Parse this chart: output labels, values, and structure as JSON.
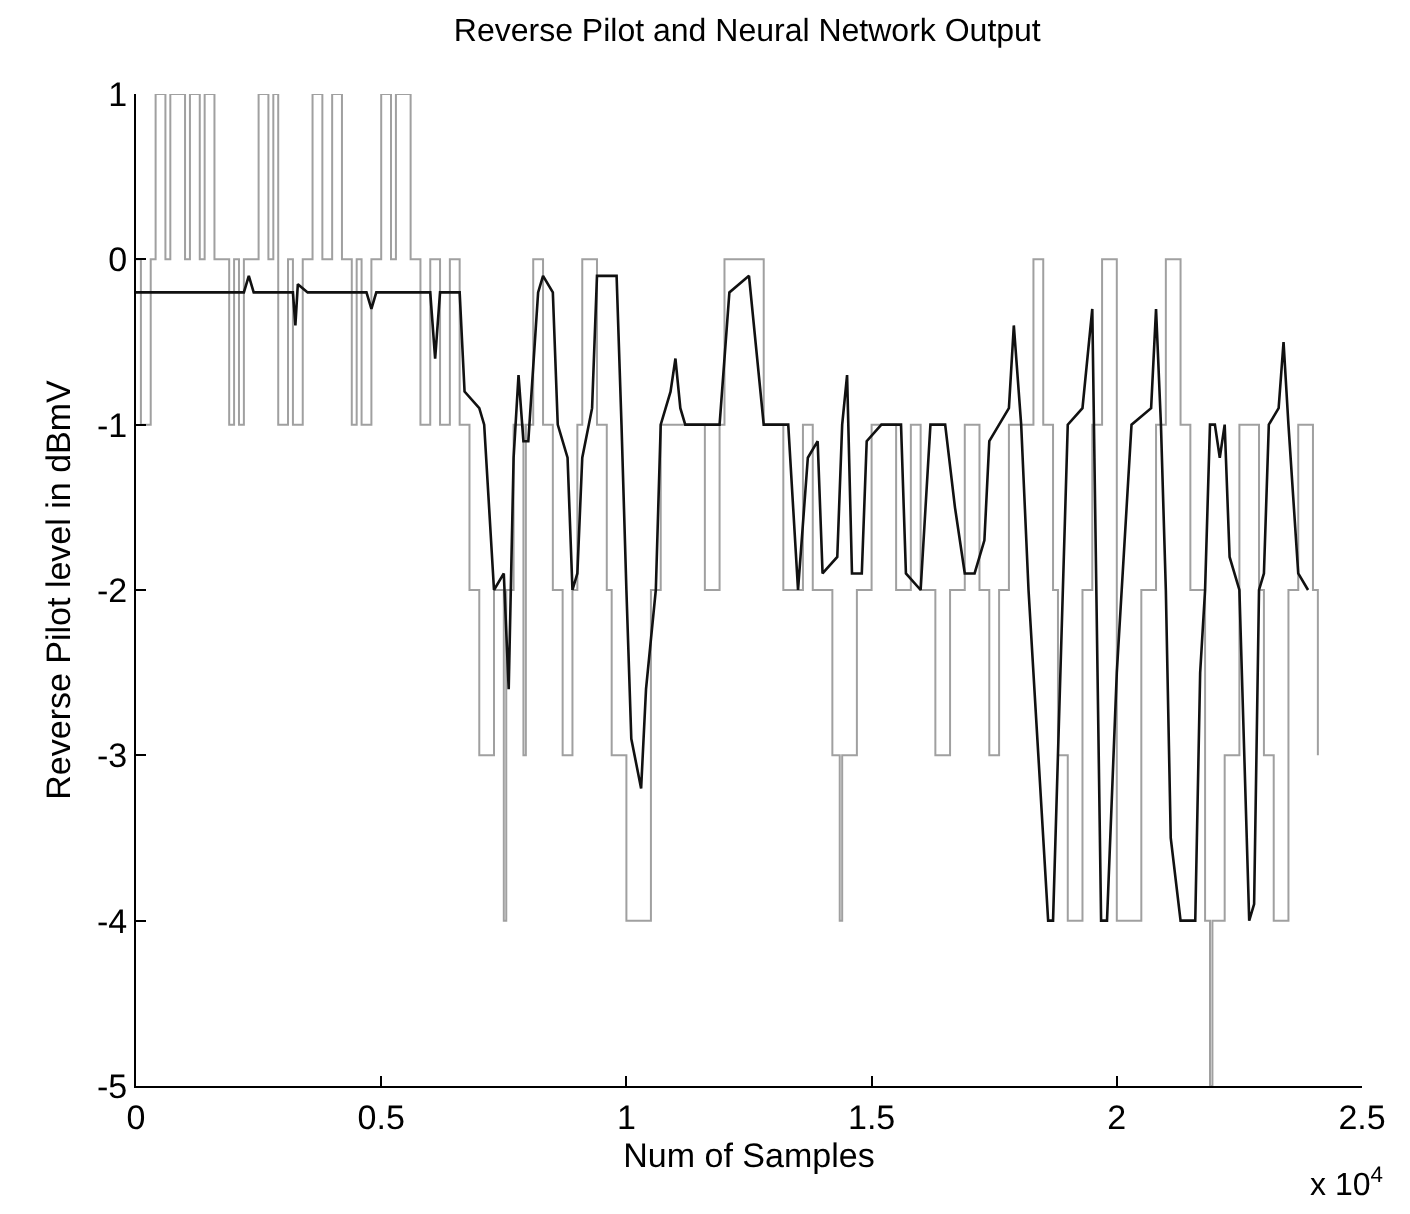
{
  "chart_data": {
    "type": "line",
    "title": "Reverse Pilot and Neural Network Output",
    "xlabel": "Num of Samples",
    "ylabel": "Reverse Pilot level in dBmV",
    "annotations": [
      "x 10$^{4}$"
    ],
    "xlim": [
      0,
      2.5
    ],
    "xticks": [
      0,
      0.5,
      1,
      1.5,
      2,
      2.5
    ],
    "ylim": [
      -5,
      1
    ],
    "yticks": [
      -5,
      -4,
      -3,
      -2,
      -1,
      0,
      1
    ],
    "marker": "none",
    "series": [
      {
        "type": "step",
        "color": "#a0a0a0",
        "x": [
          0,
          0.01,
          0.03,
          0.04,
          0.06,
          0.07,
          0.1,
          0.11,
          0.13,
          0.14,
          0.16,
          0.19,
          0.2,
          0.21,
          0.22,
          0.25,
          0.27,
          0.28,
          0.29,
          0.31,
          0.32,
          0.34,
          0.36,
          0.38,
          0.4,
          0.42,
          0.44,
          0.45,
          0.46,
          0.48,
          0.5,
          0.52,
          0.53,
          0.56,
          0.58,
          0.6,
          0.62,
          0.64,
          0.66,
          0.68,
          0.7,
          0.73,
          0.75,
          0.755,
          0.77,
          0.79,
          0.795,
          0.81,
          0.83,
          0.85,
          0.87,
          0.89,
          0.9,
          0.91,
          0.94,
          0.96,
          0.97,
          1.0,
          1.05,
          1.07,
          1.16,
          1.19,
          1.2,
          1.28,
          1.32,
          1.36,
          1.38,
          1.42,
          1.435,
          1.44,
          1.47,
          1.5,
          1.55,
          1.58,
          1.6,
          1.63,
          1.66,
          1.69,
          1.72,
          1.74,
          1.76,
          1.78,
          1.83,
          1.85,
          1.87,
          1.88,
          1.9,
          1.93,
          1.95,
          1.97,
          2.0,
          2.05,
          2.08,
          2.1,
          2.13,
          2.15,
          2.18,
          2.19,
          2.195,
          2.22,
          2.25,
          2.29,
          2.3,
          2.32,
          2.35,
          2.37,
          2.4,
          2.41
        ],
        "values": [
          0,
          -1,
          0,
          1,
          0,
          1,
          0,
          1,
          0,
          1,
          0,
          -1,
          0,
          -1,
          0,
          1,
          0,
          1,
          -1,
          0,
          -1,
          0,
          1,
          0,
          1,
          0,
          -1,
          0,
          -1,
          0,
          1,
          0,
          1,
          0,
          -1,
          0,
          -1,
          0,
          -1,
          -2,
          -3,
          -2,
          -4,
          -2,
          -1,
          -3,
          -1,
          0,
          -1,
          -2,
          -3,
          -2,
          -1,
          0,
          -1,
          -2,
          -3,
          -4,
          -2,
          -1,
          -2,
          -1,
          0,
          -1,
          -2,
          -1,
          -2,
          -3,
          -4,
          -3,
          -2,
          -1,
          -2,
          -1,
          -2,
          -3,
          -2,
          -1,
          -2,
          -3,
          -2,
          -1,
          0,
          -1,
          -2,
          -3,
          -4,
          -2,
          -1,
          0,
          -4,
          -2,
          -1,
          0,
          -1,
          -2,
          -4,
          -5,
          -4,
          -3,
          -1,
          -2,
          -3,
          -4,
          -2,
          -1,
          -2,
          -3
        ]
      },
      {
        "color": "#111111",
        "x": [
          0,
          0.22,
          0.23,
          0.24,
          0.32,
          0.325,
          0.33,
          0.35,
          0.47,
          0.48,
          0.49,
          0.6,
          0.61,
          0.62,
          0.66,
          0.67,
          0.7,
          0.71,
          0.73,
          0.75,
          0.76,
          0.77,
          0.78,
          0.785,
          0.79,
          0.8,
          0.82,
          0.83,
          0.85,
          0.86,
          0.88,
          0.89,
          0.9,
          0.91,
          0.93,
          0.94,
          0.98,
          0.99,
          1.0,
          1.01,
          1.03,
          1.04,
          1.06,
          1.07,
          1.09,
          1.1,
          1.11,
          1.12,
          1.19,
          1.21,
          1.25,
          1.28,
          1.33,
          1.35,
          1.37,
          1.39,
          1.4,
          1.43,
          1.44,
          1.45,
          1.46,
          1.48,
          1.49,
          1.52,
          1.56,
          1.57,
          1.6,
          1.62,
          1.65,
          1.67,
          1.69,
          1.71,
          1.73,
          1.74,
          1.76,
          1.78,
          1.79,
          1.805,
          1.82,
          1.84,
          1.86,
          1.87,
          1.89,
          1.9,
          1.93,
          1.95,
          1.968,
          1.97,
          1.98,
          2.0,
          2.01,
          2.03,
          2.07,
          2.08,
          2.09,
          2.1,
          2.11,
          2.13,
          2.16,
          2.17,
          2.18,
          2.19,
          2.2,
          2.21,
          2.22,
          2.23,
          2.25,
          2.27,
          2.28,
          2.29,
          2.3,
          2.31,
          2.33,
          2.34,
          2.35,
          2.37,
          2.39
        ],
        "values": [
          -0.2,
          -0.2,
          -0.1,
          -0.2,
          -0.2,
          -0.4,
          -0.15,
          -0.2,
          -0.2,
          -0.3,
          -0.2,
          -0.2,
          -0.6,
          -0.2,
          -0.2,
          -0.8,
          -0.9,
          -1.0,
          -2.0,
          -1.9,
          -2.6,
          -1.2,
          -0.7,
          -0.9,
          -1.1,
          -1.1,
          -0.2,
          -0.1,
          -0.2,
          -1.0,
          -1.2,
          -2.0,
          -1.9,
          -1.2,
          -0.9,
          -0.1,
          -0.1,
          -1.0,
          -2.0,
          -2.9,
          -3.2,
          -2.6,
          -2.0,
          -1.0,
          -0.8,
          -0.6,
          -0.9,
          -1.0,
          -1.0,
          -0.2,
          -0.1,
          -1.0,
          -1.0,
          -2.0,
          -1.2,
          -1.1,
          -1.9,
          -1.8,
          -1.0,
          -0.7,
          -1.9,
          -1.9,
          -1.1,
          -1.0,
          -1.0,
          -1.9,
          -2.0,
          -1.0,
          -1.0,
          -1.5,
          -1.9,
          -1.9,
          -1.7,
          -1.1,
          -1.0,
          -0.9,
          -0.4,
          -1.0,
          -2.0,
          -3.0,
          -4.0,
          -4.0,
          -2.0,
          -1.0,
          -0.9,
          -0.3,
          -4.0,
          -4.0,
          -4.0,
          -2.5,
          -2.0,
          -1.0,
          -0.9,
          -0.3,
          -1.0,
          -2.0,
          -3.5,
          -4.0,
          -4.0,
          -2.5,
          -2.0,
          -1.0,
          -1.0,
          -1.2,
          -1.0,
          -1.8,
          -2.0,
          -4.0,
          -3.9,
          -2.0,
          -1.9,
          -1.0,
          -0.9,
          -0.5,
          -1.0,
          -1.9,
          -2.0
        ]
      }
    ]
  }
}
